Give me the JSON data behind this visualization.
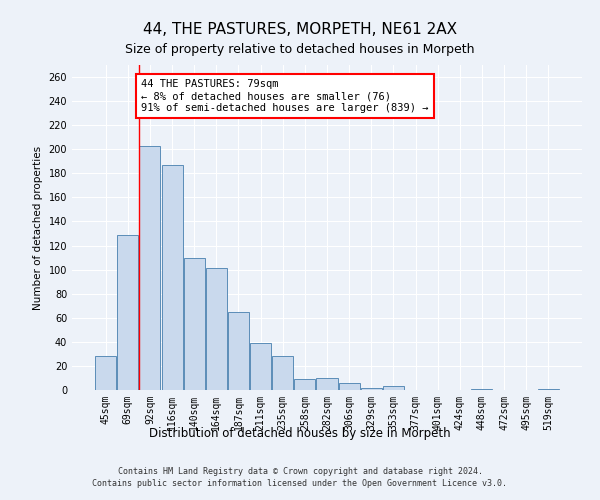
{
  "title": "44, THE PASTURES, MORPETH, NE61 2AX",
  "subtitle": "Size of property relative to detached houses in Morpeth",
  "xlabel": "Distribution of detached houses by size in Morpeth",
  "ylabel": "Number of detached properties",
  "categories": [
    "45sqm",
    "69sqm",
    "92sqm",
    "116sqm",
    "140sqm",
    "164sqm",
    "187sqm",
    "211sqm",
    "235sqm",
    "258sqm",
    "282sqm",
    "306sqm",
    "329sqm",
    "353sqm",
    "377sqm",
    "401sqm",
    "424sqm",
    "448sqm",
    "472sqm",
    "495sqm",
    "519sqm"
  ],
  "values": [
    28,
    129,
    203,
    187,
    110,
    101,
    65,
    39,
    28,
    9,
    10,
    6,
    2,
    3,
    0,
    0,
    0,
    1,
    0,
    0,
    1
  ],
  "bar_color": "#c9d9ed",
  "bar_edge_color": "#5b8db8",
  "annotation_text": "44 THE PASTURES: 79sqm\n← 8% of detached houses are smaller (76)\n91% of semi-detached houses are larger (839) →",
  "annotation_box_color": "white",
  "annotation_box_edge_color": "red",
  "vline_color": "red",
  "vline_x_index": 1.5,
  "footer_line1": "Contains HM Land Registry data © Crown copyright and database right 2024.",
  "footer_line2": "Contains public sector information licensed under the Open Government Licence v3.0.",
  "ylim": [
    0,
    270
  ],
  "background_color": "#edf2f9",
  "plot_background_color": "#edf2f9",
  "grid_color": "white",
  "title_fontsize": 11,
  "subtitle_fontsize": 9,
  "xlabel_fontsize": 8.5,
  "ylabel_fontsize": 7.5,
  "tick_fontsize": 7,
  "footer_fontsize": 6,
  "annotation_fontsize": 7.5
}
